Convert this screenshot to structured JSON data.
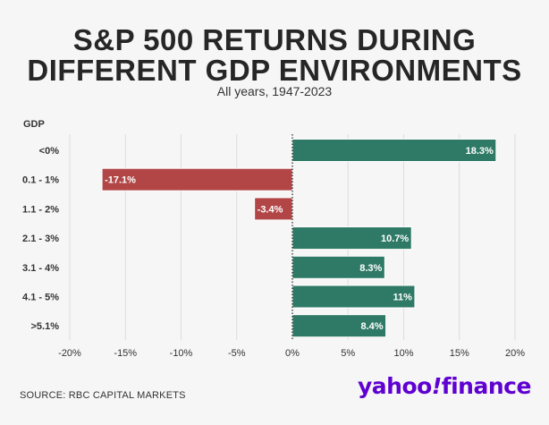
{
  "header": {
    "title_line1": "S&P 500 RETURNS DURING",
    "title_line2": "DIFFERENT GDP ENVIRONMENTS",
    "subtitle": "All years, 1947-2023"
  },
  "footer": {
    "source": "SOURCE: RBC CAPITAL MARKETS",
    "logo_text": "yahoo!finance"
  },
  "chart_data": {
    "type": "bar",
    "orientation": "horizontal",
    "ylabel": "GDP",
    "categories": [
      "<0%",
      "0.1 - 1%",
      "1.1 - 2%",
      "2.1 - 3%",
      "3.1 - 4%",
      "4.1 - 5%",
      ">5.1%"
    ],
    "values": [
      18.3,
      -17.1,
      -3.4,
      10.7,
      8.3,
      11,
      8.4
    ],
    "value_labels": [
      "18.3%",
      "-17.1%",
      "-3.4%",
      "10.7%",
      "8.3%",
      "11%",
      "8.4%"
    ],
    "xlim": [
      -20,
      20
    ],
    "xticks": [
      -20,
      -15,
      -10,
      -5,
      0,
      5,
      10,
      15,
      20
    ],
    "xtick_labels": [
      "-20%",
      "-15%",
      "-10%",
      "-5%",
      "0%",
      "5%",
      "10%",
      "15%",
      "20%"
    ],
    "grid": true,
    "colors": {
      "positive": "#2f7a66",
      "negative": "#b24646"
    }
  }
}
